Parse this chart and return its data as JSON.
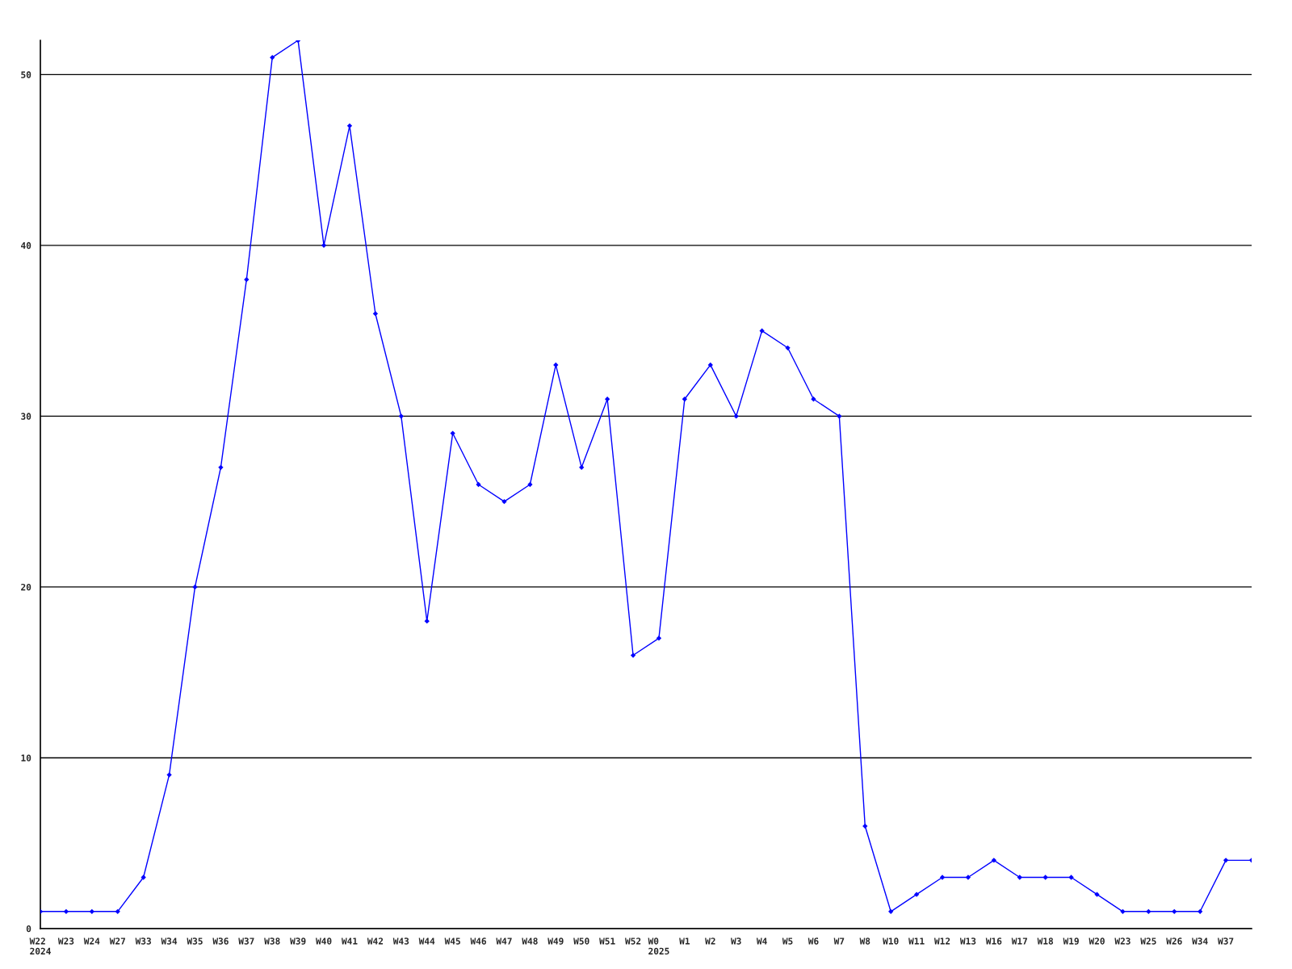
{
  "chart_data": {
    "type": "line",
    "categories": [
      "W22\n2024",
      "W23",
      "W24",
      "W27",
      "W33",
      "W34",
      "W35",
      "W36",
      "W37",
      "W38",
      "W39",
      "W40",
      "W41",
      "W42",
      "W43",
      "W44",
      "W45",
      "W46",
      "W47",
      "W48",
      "W49",
      "W50",
      "W51",
      "W52",
      "W0\n2025",
      "W1",
      "W2",
      "W3",
      "W4",
      "W5",
      "W6",
      "W7",
      "W8",
      "W10",
      "W11",
      "W12",
      "W13",
      "W16",
      "W17",
      "W18",
      "W19",
      "W20",
      "W23",
      "W25",
      "W26",
      "W34",
      "W37",
      null
    ],
    "series": [
      {
        "color": "#0000ff",
        "values": [
          1,
          1,
          1,
          1,
          3,
          9,
          20,
          27,
          38,
          51,
          52,
          40,
          47,
          36,
          30,
          18,
          29,
          26,
          25,
          26,
          33,
          27,
          31,
          16,
          17,
          31,
          33,
          30,
          35,
          34,
          31,
          30,
          6,
          1,
          2,
          3,
          3,
          4,
          3,
          3,
          3,
          2,
          1,
          1,
          1,
          1,
          4,
          4
        ]
      }
    ],
    "ylim": [
      0,
      52
    ],
    "yticks": [
      0,
      10,
      20,
      30,
      40,
      50
    ],
    "grid": "y",
    "marker": "diamond",
    "line_style": "solid"
  }
}
